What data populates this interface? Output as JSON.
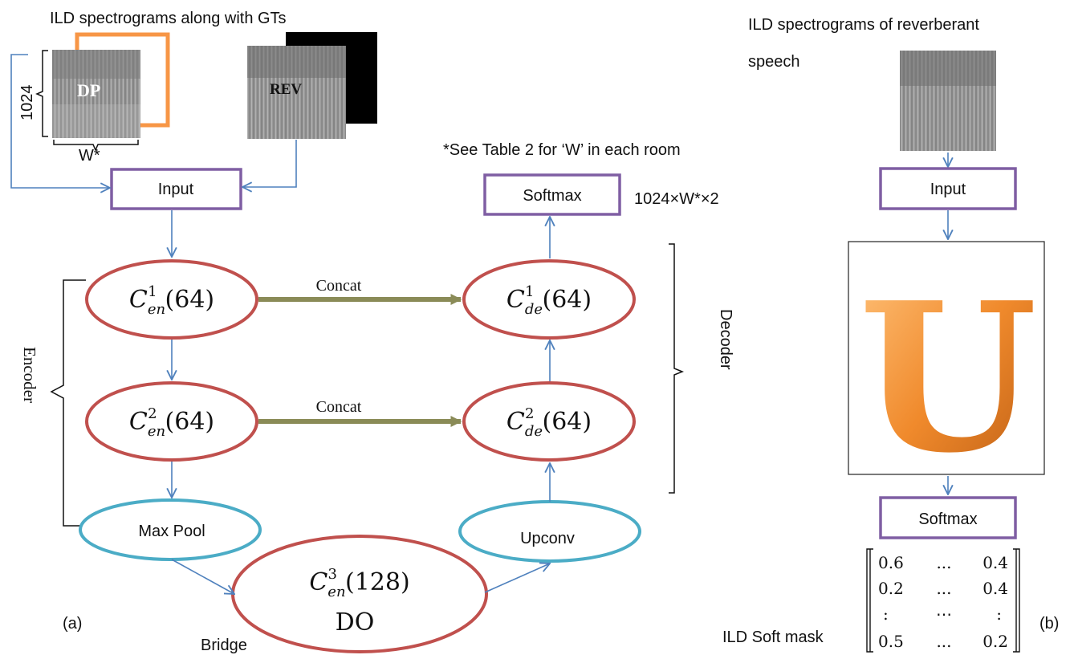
{
  "left_panel": {
    "caption_top": "ILD spectrograms along with GTs",
    "dp_label": "DP",
    "rev_label": "REV",
    "height_label": "1024",
    "width_label": "W*",
    "note": "*See Table 2 for ‘W’ in each room",
    "input_label": "Input",
    "softmax_label": "Softmax",
    "output_dims": "1024×W*×2",
    "encoder_label": "Encoder",
    "decoder_label": "Decoder",
    "enc1": {
      "base": "C",
      "sub": "en",
      "sup": "1",
      "tail": "(64)"
    },
    "enc2": {
      "base": "C",
      "sub": "en",
      "sup": "2",
      "tail": "(64)"
    },
    "bridge_conv": {
      "base": "C",
      "sub": "en",
      "sup": "3",
      "tail": "(128)"
    },
    "dropout_label": "DO",
    "dec1": {
      "base": "C",
      "sub": "de",
      "sup": "1",
      "tail": "(64)"
    },
    "dec2": {
      "base": "C",
      "sub": "de",
      "sup": "2",
      "tail": "(64)"
    },
    "concat_label_1": "Concat",
    "concat_label_2": "Concat",
    "maxpool_label": "Max Pool",
    "upconv_label": "Upconv",
    "bridge_label": "Bridge",
    "panel_tag": "(a)"
  },
  "right_panel": {
    "caption_line1": "ILD spectrograms of reverberant",
    "caption_line2": "speech",
    "input_label": "Input",
    "unet_letter": "U",
    "softmax_label": "Softmax",
    "mask_label": "ILD Soft mask",
    "mask_rows": [
      [
        "0.6",
        "...",
        "0.4"
      ],
      [
        "0.2",
        "...",
        "0.4"
      ],
      [
        ":",
        "⋯",
        ":"
      ],
      [
        "0.5",
        "...",
        "0.2"
      ]
    ],
    "panel_tag": "(b)"
  },
  "colors": {
    "input_box": "#7f5ea3",
    "conv_ellipse": "#c0504d",
    "pool_ellipse": "#4bacc6",
    "arrow": "#4f81bd",
    "concat_arrow": "#8a8b57",
    "gt_frame_dp": "#f79646",
    "gt_frame_rev": "#000000",
    "unet_letter": "#f08a2c"
  }
}
